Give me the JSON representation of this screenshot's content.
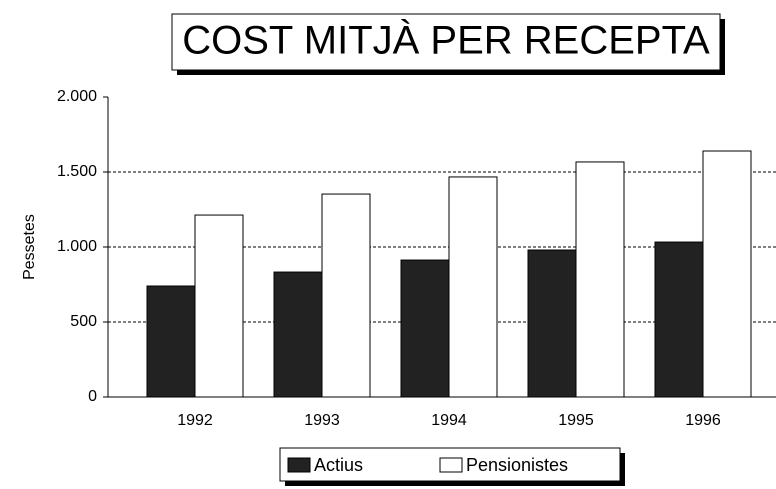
{
  "chart_data": {
    "type": "bar",
    "title": "COST MITJÀ PER RECEPTA",
    "y_label": "Pessetes",
    "categories": [
      "1992",
      "1993",
      "1994",
      "1995",
      "1996"
    ],
    "series": [
      {
        "name": "Actius",
        "color": "#222222",
        "values": [
          740,
          833,
          913,
          980,
          1033
        ]
      },
      {
        "name": "Pensionistes",
        "color": "#ffffff",
        "values": [
          1213,
          1353,
          1467,
          1567,
          1640
        ]
      }
    ],
    "ylim": [
      0,
      2000
    ],
    "yticks": [
      0,
      500,
      {
        "value": 1000,
        "label": "1.000"
      },
      {
        "value": 1500,
        "label": "1.500"
      },
      {
        "value": 2000,
        "label": "2.000"
      }
    ],
    "grid": true,
    "legend": "bottom"
  }
}
